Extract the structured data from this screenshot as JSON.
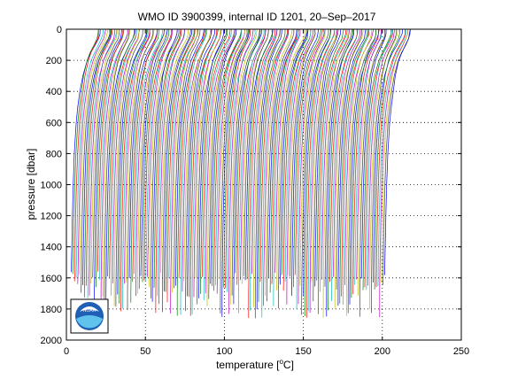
{
  "chart_data": {
    "type": "line",
    "title": "WMO ID 3900399, internal ID 1201, 20–Sep–2017",
    "xlabel": "temperature [°C]",
    "xlabel_parts": {
      "pre": "temperature [",
      "sup": "o",
      "post": "C]"
    },
    "ylabel": "pressure [dbar]",
    "xlim": [
      0,
      250
    ],
    "ylim": [
      2000,
      0
    ],
    "y_inverted": true,
    "grid": "dotted",
    "xticks": [
      0,
      50,
      100,
      150,
      200,
      250
    ],
    "yticks": [
      0,
      200,
      400,
      600,
      800,
      1000,
      1200,
      1400,
      1600,
      1800,
      2000
    ],
    "description_of_series": "Waterfall of successive temperature profiles, each offset in x; roughly 190 profiles from about x=0 to x=220",
    "profile_count": 190,
    "profile_offset_start": 0.0,
    "profile_offset_step": 1.05,
    "profile_shape_points": [
      {
        "p": 0,
        "t": 20.0
      },
      {
        "p": 30,
        "t": 19.8
      },
      {
        "p": 60,
        "t": 19.0
      },
      {
        "p": 100,
        "t": 17.0
      },
      {
        "p": 150,
        "t": 14.5
      },
      {
        "p": 200,
        "t": 12.5
      },
      {
        "p": 300,
        "t": 10.0
      },
      {
        "p": 400,
        "t": 8.5
      },
      {
        "p": 500,
        "t": 7.2
      },
      {
        "p": 600,
        "t": 6.2
      },
      {
        "p": 800,
        "t": 5.0
      },
      {
        "p": 1000,
        "t": 4.3
      },
      {
        "p": 1200,
        "t": 3.8
      },
      {
        "p": 1400,
        "t": 3.4
      },
      {
        "p": 1600,
        "t": 3.1
      },
      {
        "p": 1700,
        "t": 3.0
      }
    ],
    "line_colors": [
      "#0000ff",
      "#008000",
      "#ff0000",
      "#00bfbf",
      "#bf00bf",
      "#bfbf00",
      "#404040"
    ]
  },
  "logo": {
    "text": "NOAA"
  }
}
